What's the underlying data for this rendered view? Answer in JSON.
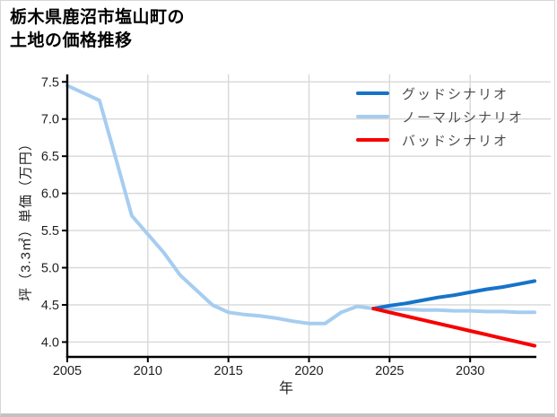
{
  "title": {
    "line1": "栃木県鹿沼市塩山町の",
    "line2": "土地の価格推移"
  },
  "chart_data": {
    "type": "line",
    "title": "栃木県鹿沼市塩山町の土地の価格推移",
    "xlabel": "年",
    "ylabel": "坪（3.3㎡）単価（万円）",
    "xlim": [
      2005,
      2035
    ],
    "ylim": [
      3.8,
      7.6
    ],
    "x_ticks": [
      2005,
      2010,
      2015,
      2020,
      2025,
      2030
    ],
    "y_ticks": [
      4.0,
      4.5,
      5.0,
      5.5,
      6.0,
      6.5,
      7.0,
      7.5
    ],
    "grid": true,
    "grid_color": "#d8d8d8",
    "axis_color": "#000000",
    "legend_position": "upper right",
    "series": [
      {
        "name": "グッドシナリオ",
        "color": "#1673c9",
        "x": [
          2024,
          2025,
          2026,
          2027,
          2028,
          2029,
          2030,
          2031,
          2032,
          2033,
          2034
        ],
        "y": [
          4.45,
          4.49,
          4.52,
          4.56,
          4.6,
          4.63,
          4.67,
          4.71,
          4.74,
          4.78,
          4.82
        ]
      },
      {
        "name": "ノーマルシナリオ",
        "color": "#a6cdf0",
        "x": [
          2005,
          2006,
          2007,
          2008,
          2009,
          2010,
          2011,
          2012,
          2013,
          2014,
          2015,
          2016,
          2017,
          2018,
          2019,
          2020,
          2021,
          2022,
          2023,
          2024,
          2025,
          2026,
          2027,
          2028,
          2029,
          2030,
          2031,
          2032,
          2033,
          2034
        ],
        "y": [
          7.45,
          7.35,
          7.25,
          6.48,
          5.7,
          5.45,
          5.2,
          4.9,
          4.7,
          4.5,
          4.4,
          4.37,
          4.35,
          4.32,
          4.28,
          4.25,
          4.25,
          4.4,
          4.48,
          4.45,
          4.44,
          4.44,
          4.43,
          4.43,
          4.42,
          4.42,
          4.41,
          4.41,
          4.4,
          4.4
        ]
      },
      {
        "name": "バッドシナリオ",
        "color": "#f70000",
        "x": [
          2024,
          2025,
          2026,
          2027,
          2028,
          2029,
          2030,
          2031,
          2032,
          2033,
          2034
        ],
        "y": [
          4.45,
          4.4,
          4.35,
          4.3,
          4.25,
          4.2,
          4.15,
          4.1,
          4.05,
          4.0,
          3.95
        ]
      }
    ]
  }
}
